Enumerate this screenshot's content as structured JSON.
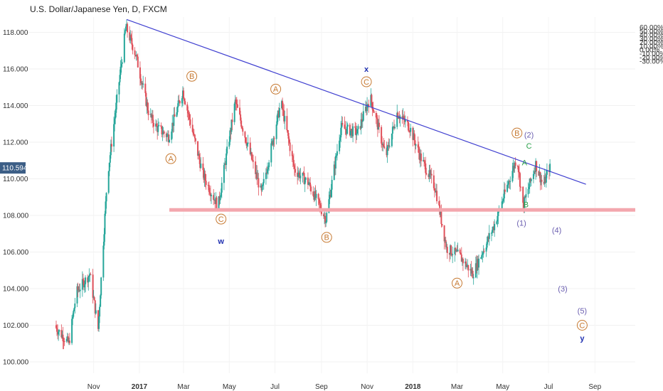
{
  "header": {
    "title": "U.S. Dollar/Japanese Yen, D, FXCM"
  },
  "price_tag": {
    "value": "110.594"
  },
  "colors": {
    "up": "#26a69a",
    "down": "#e0505a",
    "trendline": "#3f3fd0",
    "support": "#f3a7ae",
    "wave_orange": "#c77a32",
    "wave_blue": "#1f2fb0",
    "wave_purple": "#6b5fb0",
    "wave_green": "#2aa04a",
    "tag_bg": "#3c5e86"
  },
  "chart_data": {
    "type": "candlestick",
    "title": "U.S. Dollar/Japanese Yen, D, FXCM",
    "y_left": {
      "ticks": [
        "100.000",
        "102.000",
        "104.000",
        "106.000",
        "108.000",
        "110.000",
        "112.000",
        "114.000",
        "116.000",
        "118.000"
      ],
      "range": [
        99.8,
        118.7
      ]
    },
    "y_right": {
      "ticks": [
        "60.00%",
        "50.00%",
        "40.00%",
        "30.00%",
        "20.00%",
        "10.00%",
        "0.00%",
        "-10.00%",
        "-20.00%",
        "-30.00%"
      ],
      "range_percent": [
        -30,
        60
      ]
    },
    "x_ticks": [
      "Nov",
      "2017",
      "Mar",
      "May",
      "Jul",
      "Sep",
      "Nov",
      "2018",
      "Mar",
      "May",
      "Jul",
      "Sep"
    ],
    "current_price": 110.594,
    "trendline": {
      "from": {
        "date": "2016-12-15",
        "price": 118.7
      },
      "to": {
        "date": "2018-08-20",
        "price": 109.7
      }
    },
    "support_level": {
      "price": 108.3,
      "from_date": "2017-02-10"
    },
    "price_path": [
      {
        "date": "2016-09-10",
        "price": 102.0
      },
      {
        "date": "2016-09-30",
        "price": 101.0
      },
      {
        "date": "2016-10-10",
        "price": 103.8
      },
      {
        "date": "2016-10-28",
        "price": 104.8
      },
      {
        "date": "2016-11-08",
        "price": 101.8
      },
      {
        "date": "2016-11-20",
        "price": 110.0
      },
      {
        "date": "2016-12-15",
        "price": 118.3
      },
      {
        "date": "2016-12-28",
        "price": 116.8
      },
      {
        "date": "2017-01-15",
        "price": 113.5
      },
      {
        "date": "2017-01-25",
        "price": 112.8
      },
      {
        "date": "2017-02-10",
        "price": 112.3
      },
      {
        "date": "2017-03-01",
        "price": 114.8
      },
      {
        "date": "2017-03-28",
        "price": 110.2
      },
      {
        "date": "2017-04-17",
        "price": 108.5
      },
      {
        "date": "2017-05-10",
        "price": 114.2
      },
      {
        "date": "2017-06-14",
        "price": 109.2
      },
      {
        "date": "2017-07-10",
        "price": 114.2
      },
      {
        "date": "2017-07-28",
        "price": 110.5
      },
      {
        "date": "2017-08-15",
        "price": 109.8
      },
      {
        "date": "2017-09-08",
        "price": 107.8
      },
      {
        "date": "2017-09-28",
        "price": 112.8
      },
      {
        "date": "2017-10-20",
        "price": 112.5
      },
      {
        "date": "2017-11-06",
        "price": 114.5
      },
      {
        "date": "2017-11-27",
        "price": 111.2
      },
      {
        "date": "2017-12-12",
        "price": 113.6
      },
      {
        "date": "2017-12-29",
        "price": 112.8
      },
      {
        "date": "2018-01-12",
        "price": 111.2
      },
      {
        "date": "2018-02-01",
        "price": 109.5
      },
      {
        "date": "2018-02-16",
        "price": 106.2
      },
      {
        "date": "2018-03-05",
        "price": 105.8
      },
      {
        "date": "2018-03-23",
        "price": 104.8
      },
      {
        "date": "2018-04-20",
        "price": 107.4
      },
      {
        "date": "2018-05-21",
        "price": 111.2
      },
      {
        "date": "2018-05-29",
        "price": 108.5
      },
      {
        "date": "2018-06-15",
        "price": 110.8
      },
      {
        "date": "2018-06-25",
        "price": 109.6
      },
      {
        "date": "2018-07-03",
        "price": 110.6
      }
    ],
    "wave_labels": [
      {
        "text": "A",
        "style": "circle",
        "color": "orange",
        "date": "2017-02-12",
        "price": 111.1
      },
      {
        "text": "B",
        "style": "circle",
        "color": "orange",
        "date": "2017-03-12",
        "price": 115.6
      },
      {
        "text": "C",
        "style": "circle",
        "color": "orange",
        "date": "2017-04-20",
        "price": 107.8
      },
      {
        "text": "w",
        "style": "plain",
        "color": "blue",
        "date": "2017-04-20",
        "price": 106.6
      },
      {
        "text": "A",
        "style": "circle",
        "color": "orange",
        "date": "2017-07-02",
        "price": 114.9
      },
      {
        "text": "B",
        "style": "circle",
        "color": "orange",
        "date": "2017-09-08",
        "price": 106.8
      },
      {
        "text": "C",
        "style": "circle",
        "color": "orange",
        "date": "2017-10-31",
        "price": 115.3
      },
      {
        "text": "x",
        "style": "plain",
        "color": "blue",
        "date": "2017-10-31",
        "price": 116.0
      },
      {
        "text": "A",
        "style": "circle",
        "color": "orange",
        "date": "2018-03-01",
        "price": 104.3
      },
      {
        "text": "B",
        "style": "circle",
        "color": "orange",
        "date": "2018-05-20",
        "price": 112.5
      },
      {
        "text": "(2)",
        "style": "plain",
        "color": "purple",
        "date": "2018-06-05",
        "price": 112.4
      },
      {
        "text": "C",
        "style": "plain",
        "color": "green",
        "date": "2018-06-05",
        "price": 111.8
      },
      {
        "text": "A",
        "style": "plain",
        "color": "green",
        "date": "2018-05-30",
        "price": 110.9
      },
      {
        "text": "B",
        "style": "plain",
        "color": "green",
        "date": "2018-06-01",
        "price": 108.6
      },
      {
        "text": "(1)",
        "style": "plain",
        "color": "purple",
        "date": "2018-05-26",
        "price": 107.6
      },
      {
        "text": "(4)",
        "style": "plain",
        "color": "purple",
        "date": "2018-07-12",
        "price": 107.2
      },
      {
        "text": "(3)",
        "style": "plain",
        "color": "purple",
        "date": "2018-07-20",
        "price": 104.0
      },
      {
        "text": "(5)",
        "style": "plain",
        "color": "purple",
        "date": "2018-08-15",
        "price": 102.8
      },
      {
        "text": "C",
        "style": "circle",
        "color": "orange",
        "date": "2018-08-15",
        "price": 102.0
      },
      {
        "text": "y",
        "style": "plain",
        "color": "blue",
        "date": "2018-08-15",
        "price": 101.3
      }
    ]
  }
}
